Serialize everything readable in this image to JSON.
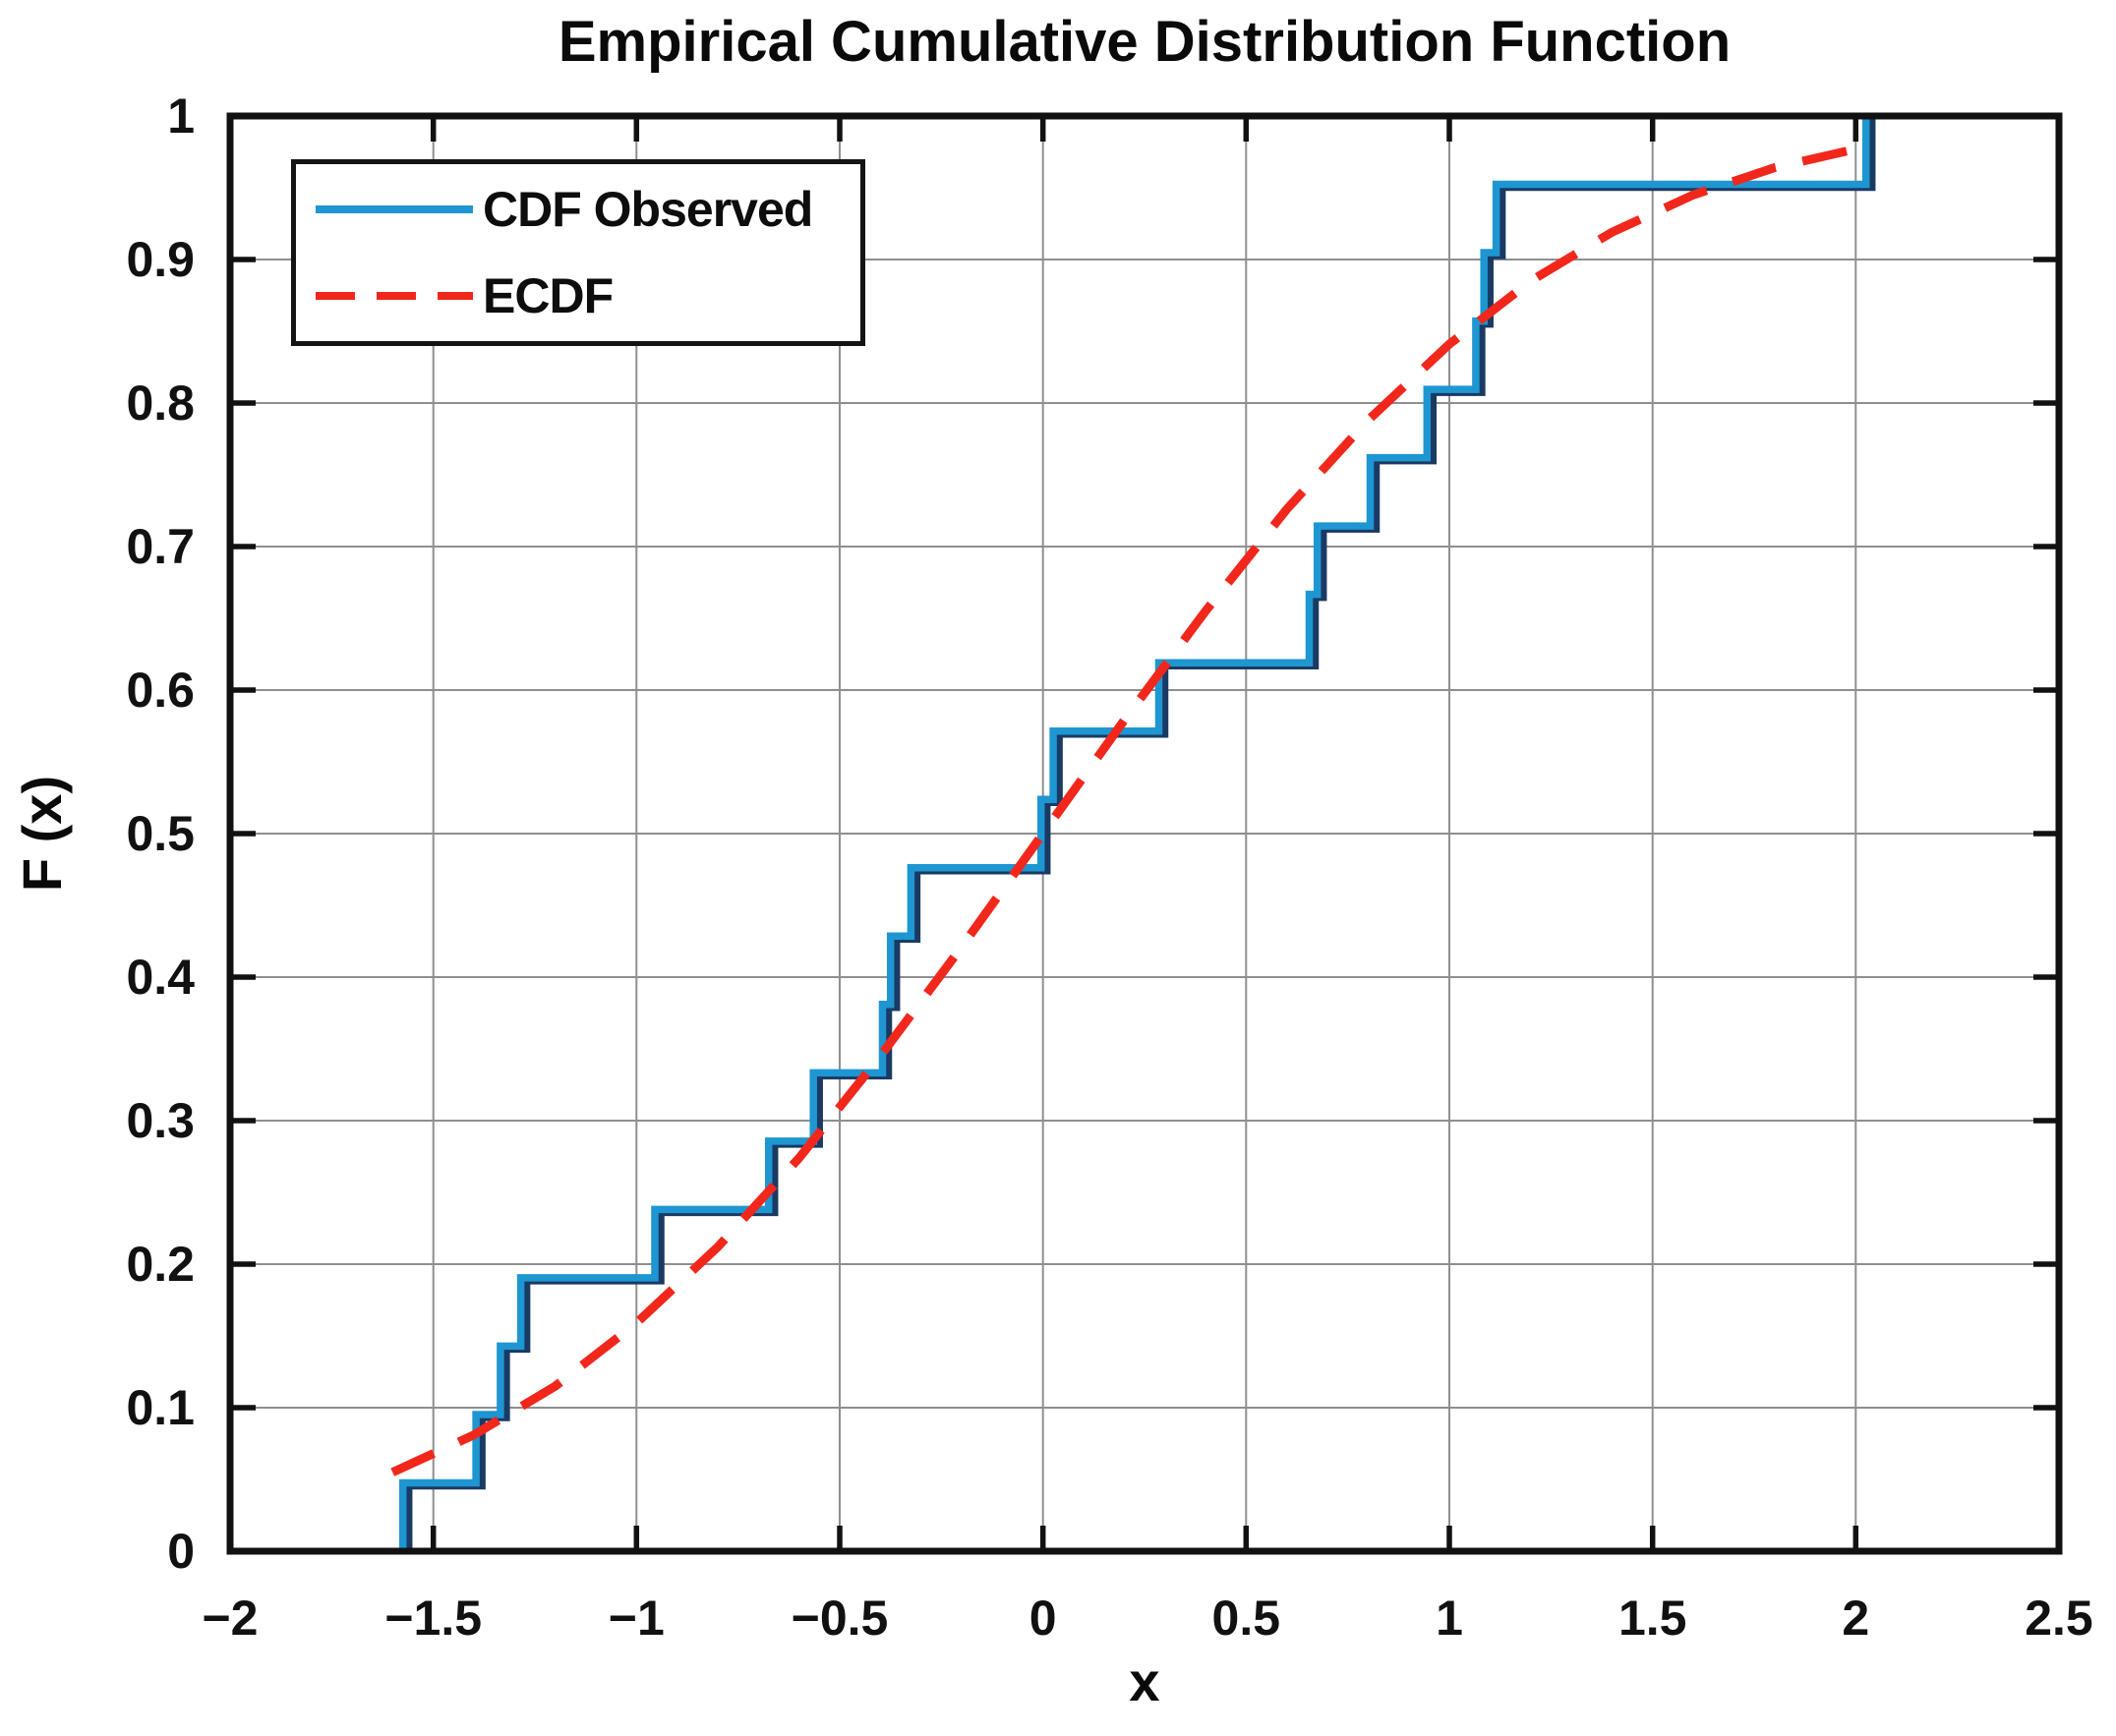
{
  "chart_data": {
    "type": "line",
    "title": "Empirical Cumulative Distribution Function",
    "xlabel": "x",
    "ylabel": "F (x)",
    "xlim": [
      -2,
      2.5
    ],
    "ylim": [
      0,
      1
    ],
    "grid": true,
    "x_ticks": [
      -2,
      -1.5,
      -1,
      -0.5,
      0,
      0.5,
      1,
      1.5,
      2,
      2.5
    ],
    "x_tick_labels": [
      "−2",
      "−1.5",
      "−1",
      "−0.5",
      "0",
      "0.5",
      "1",
      "1.5",
      "2",
      "2.5"
    ],
    "y_ticks": [
      0,
      0.1,
      0.2,
      0.3,
      0.4,
      0.5,
      0.6,
      0.7,
      0.8,
      0.9,
      1
    ],
    "y_tick_labels": [
      "0",
      "0.1",
      "0.2",
      "0.3",
      "0.4",
      "0.5",
      "0.6",
      "0.7",
      "0.8",
      "0.9",
      "1"
    ],
    "legend": {
      "position": "top-left",
      "entries": [
        "CDF Observed",
        "ECDF"
      ]
    },
    "series": [
      {
        "name": "CDF Observed",
        "style": "step",
        "color": "#1e96d2",
        "shadow_color": "#1a3a63",
        "x": [
          -1.57,
          -1.39,
          -1.33,
          -1.28,
          -0.95,
          -0.67,
          -0.56,
          -0.39,
          -0.37,
          -0.32,
          0.0,
          0.03,
          0.29,
          0.66,
          0.68,
          0.81,
          0.95,
          1.07,
          1.09,
          1.12,
          2.03
        ],
        "y": [
          0.0476,
          0.0952,
          0.1429,
          0.1905,
          0.2381,
          0.2857,
          0.3333,
          0.381,
          0.4286,
          0.4762,
          0.5238,
          0.5714,
          0.619,
          0.6667,
          0.7143,
          0.7619,
          0.8095,
          0.8571,
          0.9048,
          0.9524,
          1.0
        ]
      },
      {
        "name": "ECDF",
        "style": "dashed",
        "color": "#f1271c",
        "points": [
          [
            -1.6,
            0.055
          ],
          [
            -1.4,
            0.081
          ],
          [
            -1.2,
            0.115
          ],
          [
            -1.0,
            0.159
          ],
          [
            -0.8,
            0.212
          ],
          [
            -0.6,
            0.274
          ],
          [
            -0.4,
            0.345
          ],
          [
            -0.2,
            0.421
          ],
          [
            0.0,
            0.5
          ],
          [
            0.2,
            0.579
          ],
          [
            0.4,
            0.655
          ],
          [
            0.6,
            0.726
          ],
          [
            0.8,
            0.788
          ],
          [
            1.0,
            0.841
          ],
          [
            1.2,
            0.885
          ],
          [
            1.4,
            0.919
          ],
          [
            1.6,
            0.945
          ],
          [
            1.8,
            0.964
          ],
          [
            2.0,
            0.977
          ],
          [
            2.04,
            0.979
          ]
        ]
      }
    ],
    "colors": {
      "grid": "#8f8f8f",
      "frame": "#111111",
      "background": "#ffffff"
    }
  }
}
